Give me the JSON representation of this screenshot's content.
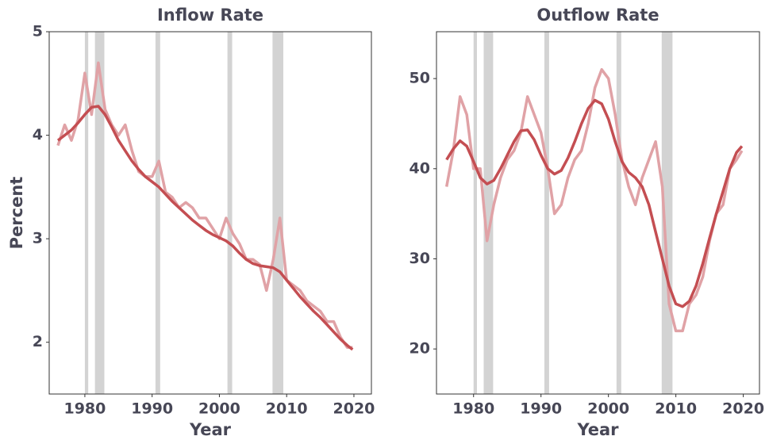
{
  "chart_data": [
    {
      "type": "line",
      "title": "Inflow Rate",
      "y_label": "Percent",
      "x_label": "Year",
      "x": [
        1976,
        1977,
        1978,
        1979,
        1980,
        1981,
        1982,
        1983,
        1984,
        1985,
        1986,
        1987,
        1988,
        1989,
        1990,
        1991,
        1992,
        1993,
        1994,
        1995,
        1996,
        1997,
        1998,
        1999,
        2000,
        2001,
        2002,
        2003,
        2004,
        2005,
        2006,
        2007,
        2008,
        2009,
        2010,
        2011,
        2012,
        2013,
        2014,
        2015,
        2016,
        2017,
        2018,
        2019,
        2019.8
      ],
      "series": [
        {
          "color": "#e0a2a6",
          "values": [
            3.9,
            4.1,
            3.95,
            4.15,
            4.6,
            4.2,
            4.7,
            4.25,
            4.1,
            4.0,
            4.1,
            3.85,
            3.65,
            3.6,
            3.6,
            3.75,
            3.45,
            3.4,
            3.3,
            3.35,
            3.3,
            3.2,
            3.2,
            3.1,
            3.0,
            3.2,
            3.05,
            2.95,
            2.8,
            2.8,
            2.75,
            2.5,
            2.8,
            3.2,
            2.6,
            2.55,
            2.5,
            2.4,
            2.35,
            2.3,
            2.2,
            2.2,
            2.05,
            1.95,
            1.95
          ]
        },
        {
          "color": "#c44e52",
          "values": [
            3.95,
            4.0,
            4.05,
            4.12,
            4.2,
            4.27,
            4.28,
            4.2,
            4.08,
            3.95,
            3.85,
            3.75,
            3.67,
            3.6,
            3.55,
            3.5,
            3.43,
            3.36,
            3.3,
            3.24,
            3.18,
            3.13,
            3.08,
            3.04,
            3.01,
            2.98,
            2.93,
            2.86,
            2.8,
            2.76,
            2.74,
            2.73,
            2.72,
            2.68,
            2.6,
            2.52,
            2.44,
            2.37,
            2.3,
            2.24,
            2.17,
            2.1,
            2.03,
            1.97,
            1.93
          ]
        }
      ],
      "shaded_spans": [
        [
          1980.0,
          1980.5
        ],
        [
          1981.5,
          1982.9
        ],
        [
          1990.5,
          1991.2
        ],
        [
          2001.2,
          2001.9
        ],
        [
          2007.9,
          2009.5
        ]
      ],
      "shade_color": "#d3d3d3",
      "xlim": [
        1974.7,
        2022.6
      ],
      "xticks": [
        1980,
        1990,
        2000,
        2010,
        2020
      ],
      "ylim": [
        1.5,
        5
      ],
      "yticks": [
        2,
        3,
        4,
        5
      ]
    },
    {
      "type": "line",
      "title": "Outflow Rate",
      "x_label": "Year",
      "x": [
        1976,
        1977,
        1978,
        1979,
        1980,
        1981,
        1982,
        1983,
        1984,
        1985,
        1986,
        1987,
        1988,
        1989,
        1990,
        1991,
        1992,
        1993,
        1994,
        1995,
        1996,
        1997,
        1998,
        1999,
        2000,
        2001,
        2002,
        2003,
        2004,
        2005,
        2006,
        2007,
        2008,
        2009,
        2010,
        2011,
        2012,
        2013,
        2014,
        2015,
        2016,
        2017,
        2018,
        2019,
        2019.8
      ],
      "series": [
        {
          "color": "#e0a2a6",
          "values": [
            38,
            42,
            48,
            46,
            40,
            40,
            32,
            36,
            39,
            41,
            42,
            44,
            48,
            46,
            44,
            40,
            35,
            36,
            39,
            41,
            42,
            45,
            49,
            51,
            50,
            46,
            41,
            38,
            36,
            39,
            41,
            43,
            38,
            25,
            22,
            22,
            25,
            26,
            28,
            32,
            35,
            36,
            40,
            41,
            42
          ]
        },
        {
          "color": "#c44e52",
          "values": [
            41,
            42.2,
            43.1,
            42.5,
            40.8,
            39,
            38.3,
            38.7,
            40,
            41.5,
            43,
            44.2,
            44.3,
            43.2,
            41.5,
            40,
            39.4,
            39.8,
            41.2,
            43,
            45,
            46.7,
            47.6,
            47.2,
            45.5,
            43,
            40.8,
            39.6,
            39,
            38,
            36,
            33,
            30,
            27,
            25,
            24.7,
            25.3,
            27,
            29.5,
            32.3,
            35,
            37.5,
            40,
            41.8,
            42.5
          ]
        }
      ],
      "shaded_spans": [
        [
          1980.0,
          1980.5
        ],
        [
          1981.5,
          1982.9
        ],
        [
          1990.5,
          1991.2
        ],
        [
          2001.2,
          2001.9
        ],
        [
          2007.9,
          2009.5
        ]
      ],
      "shade_color": "#d3d3d3",
      "xlim": [
        1974.5,
        2022.4
      ],
      "xticks": [
        1980,
        1990,
        2000,
        2010,
        2020
      ],
      "ylim": [
        15,
        55.2
      ],
      "yticks": [
        20,
        30,
        40,
        50
      ]
    }
  ]
}
